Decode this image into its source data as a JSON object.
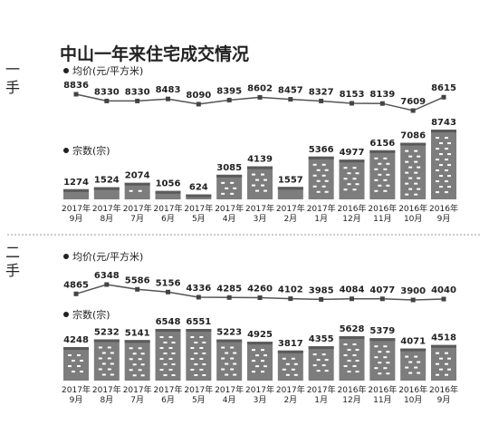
{
  "title": "中山一年来住宅成交情况",
  "colors": {
    "bar": "#7d7d7d",
    "bar_cap": "#5a5a5a",
    "line": "#555555",
    "marker": "#444444",
    "dash": "#ffffff",
    "divider": "#999999",
    "text": "#222222"
  },
  "chart_data": [
    {
      "section": "一手",
      "type": "line",
      "title": "均价(元/平方米)",
      "categories": [
        [
          "2017年",
          "9月"
        ],
        [
          "2017年",
          "8月"
        ],
        [
          "2017年",
          "7月"
        ],
        [
          "2017年",
          "6月"
        ],
        [
          "2017年",
          "5月"
        ],
        [
          "2017年",
          "4月"
        ],
        [
          "2017年",
          "3月"
        ],
        [
          "2017年",
          "2月"
        ],
        [
          "2017年",
          "1月"
        ],
        [
          "2016年",
          "12月"
        ],
        [
          "2016年",
          "11月"
        ],
        [
          "2016年",
          "10月"
        ],
        [
          "2016年",
          "9月"
        ]
      ],
      "values": [
        8836,
        8330,
        8330,
        8483,
        8090,
        8395,
        8602,
        8457,
        8327,
        8153,
        8139,
        7609,
        8615
      ]
    },
    {
      "section": "一手",
      "type": "bar",
      "title": "宗数(宗)",
      "categories": [
        [
          "2017年",
          "9月"
        ],
        [
          "2017年",
          "8月"
        ],
        [
          "2017年",
          "7月"
        ],
        [
          "2017年",
          "6月"
        ],
        [
          "2017年",
          "5月"
        ],
        [
          "2017年",
          "4月"
        ],
        [
          "2017年",
          "3月"
        ],
        [
          "2017年",
          "2月"
        ],
        [
          "2017年",
          "1月"
        ],
        [
          "2016年",
          "12月"
        ],
        [
          "2016年",
          "11月"
        ],
        [
          "2016年",
          "10月"
        ],
        [
          "2016年",
          "9月"
        ]
      ],
      "values": [
        1274,
        1524,
        2074,
        1056,
        624,
        3085,
        4139,
        1557,
        5366,
        4977,
        6156,
        7086,
        8743
      ]
    },
    {
      "section": "二手",
      "type": "line",
      "title": "均价(元/平方米)",
      "categories": [
        [
          "2017年",
          "9月"
        ],
        [
          "2017年",
          "8月"
        ],
        [
          "2017年",
          "7月"
        ],
        [
          "2017年",
          "6月"
        ],
        [
          "2017年",
          "5月"
        ],
        [
          "2017年",
          "4月"
        ],
        [
          "2017年",
          "3月"
        ],
        [
          "2017年",
          "2月"
        ],
        [
          "2017年",
          "1月"
        ],
        [
          "2016年",
          "12月"
        ],
        [
          "2016年",
          "11月"
        ],
        [
          "2016年",
          "10月"
        ],
        [
          "2016年",
          "9月"
        ]
      ],
      "values": [
        4865,
        6348,
        5586,
        5156,
        4336,
        4285,
        4260,
        4102,
        3985,
        4084,
        4077,
        3900,
        4040
      ]
    },
    {
      "section": "二手",
      "type": "bar",
      "title": "宗数(宗)",
      "categories": [
        [
          "2017年",
          "9月"
        ],
        [
          "2017年",
          "8月"
        ],
        [
          "2017年",
          "7月"
        ],
        [
          "2017年",
          "6月"
        ],
        [
          "2017年",
          "5月"
        ],
        [
          "2017年",
          "4月"
        ],
        [
          "2017年",
          "3月"
        ],
        [
          "2017年",
          "2月"
        ],
        [
          "2017年",
          "1月"
        ],
        [
          "2016年",
          "12月"
        ],
        [
          "2016年",
          "11月"
        ],
        [
          "2016年",
          "10月"
        ],
        [
          "2016年",
          "9月"
        ]
      ],
      "values": [
        4248,
        5232,
        5141,
        6548,
        6551,
        5223,
        4925,
        3817,
        4355,
        5628,
        5379,
        4071,
        4518
      ]
    }
  ]
}
